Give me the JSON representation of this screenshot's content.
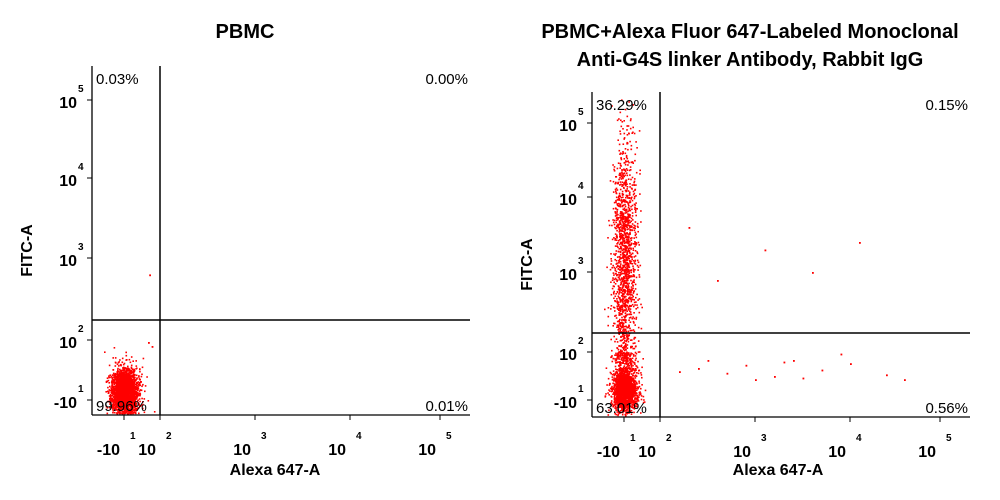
{
  "chart_data": [
    {
      "type": "scatter",
      "title_lines": [
        "PBMC"
      ],
      "xlabel": "Alexa 647-A",
      "ylabel": "FITC-A",
      "x_scale": "log",
      "y_scale": "log",
      "x_ticks": [
        {
          "base": "-10",
          "exp": "1"
        },
        {
          "base": "10",
          "exp": "2"
        },
        {
          "base": "10",
          "exp": "3"
        },
        {
          "base": "10",
          "exp": "4"
        },
        {
          "base": "10",
          "exp": "5"
        }
      ],
      "y_ticks": [
        {
          "base": "-10",
          "exp": "1"
        },
        {
          "base": "10",
          "exp": "2"
        },
        {
          "base": "10",
          "exp": "3"
        },
        {
          "base": "10",
          "exp": "4"
        },
        {
          "base": "10",
          "exp": "5"
        }
      ],
      "quadrants": {
        "upper_left": "0.03%",
        "upper_right": "0.00%",
        "lower_left": "99.96%",
        "lower_right": "0.01%"
      },
      "dot_color": "#ff0000",
      "populations": [
        {
          "name": "",
          "x_center": -1,
          "y_center": -0.6,
          "spread_x": 0.18,
          "spread_y": 0.2,
          "count": 2600
        }
      ],
      "outliers": [
        [
          1.1,
          2.8
        ],
        [
          1.0,
          1.9
        ],
        [
          1.3,
          1.7
        ]
      ]
    },
    {
      "type": "scatter",
      "title_lines": [
        "PBMC+Alexa Fluor 647-Labeled Monoclonal",
        "Anti-G4S linker Antibody, Rabbit IgG"
      ],
      "xlabel": "Alexa 647-A",
      "ylabel": "FITC-A",
      "x_scale": "log",
      "y_scale": "log",
      "x_ticks": [
        {
          "base": "-10",
          "exp": "1"
        },
        {
          "base": "10",
          "exp": "2"
        },
        {
          "base": "10",
          "exp": "3"
        },
        {
          "base": "10",
          "exp": "4"
        },
        {
          "base": "10",
          "exp": "5"
        }
      ],
      "y_ticks": [
        {
          "base": "-10",
          "exp": "1"
        },
        {
          "base": "10",
          "exp": "2"
        },
        {
          "base": "10",
          "exp": "3"
        },
        {
          "base": "10",
          "exp": "4"
        },
        {
          "base": "10",
          "exp": "5"
        }
      ],
      "quadrants": {
        "upper_left": "36.29%",
        "upper_right": "0.15%",
        "lower_left": "63.01%",
        "lower_right": "0.56%"
      },
      "dot_color": "#ff0000",
      "populations": [
        {
          "name": "",
          "x_center": -1,
          "y_center": 3.1,
          "spread_x": 0.17,
          "spread_y": 0.28,
          "count": 1500
        },
        {
          "name": "",
          "x_center": -1,
          "y_center": -0.3,
          "spread_x": 0.17,
          "spread_y": 0.22,
          "count": 1700
        },
        {
          "name": "",
          "x_center": -1,
          "y_center": 1.5,
          "spread_x": 0.12,
          "spread_y": 0.5,
          "count": 120
        }
      ],
      "outliers": [
        [
          2.3,
          3.6
        ],
        [
          2.6,
          2.9
        ],
        [
          3.1,
          3.3
        ],
        [
          3.3,
          1.4
        ],
        [
          3.6,
          3.0
        ],
        [
          4.0,
          1.3
        ],
        [
          4.4,
          0.6
        ],
        [
          3.9,
          1.9
        ],
        [
          2.7,
          0.7
        ],
        [
          3.2,
          0.5
        ],
        [
          2.9,
          1.2
        ],
        [
          3.0,
          0.3
        ],
        [
          2.4,
          1.0
        ],
        [
          3.5,
          0.4
        ],
        [
          2.2,
          0.8
        ],
        [
          3.4,
          1.5
        ],
        [
          4.1,
          3.4
        ],
        [
          4.6,
          0.3
        ],
        [
          2.5,
          1.5
        ],
        [
          3.7,
          0.9
        ]
      ]
    }
  ]
}
